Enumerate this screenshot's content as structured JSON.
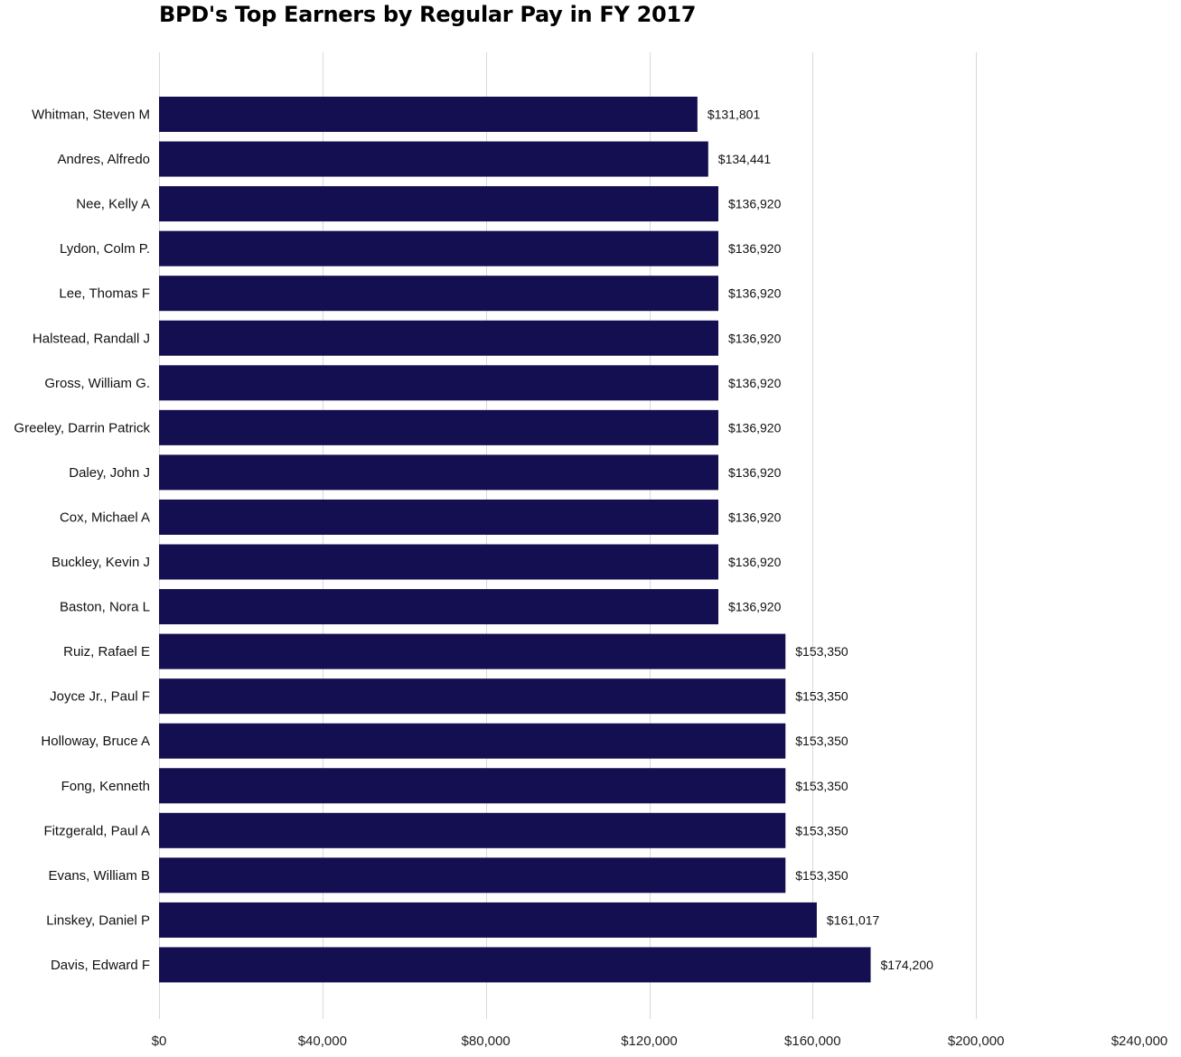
{
  "chart_data": {
    "type": "bar",
    "orientation": "horizontal",
    "title": "BPD's Top Earners by Regular Pay in FY 2017",
    "xlabel": "",
    "ylabel": "",
    "xlim": [
      0,
      240000
    ],
    "x_ticks": [
      0,
      40000,
      80000,
      120000,
      160000,
      200000,
      240000
    ],
    "x_tick_labels": [
      "$0",
      "$40,000",
      "$80,000",
      "$120,000",
      "$160,000",
      "$200,000",
      "$240,000"
    ],
    "grid": "vertical",
    "legend": "none",
    "bar_color": "#130f50",
    "categories": [
      "Whitman, Steven M",
      "Andres, Alfredo",
      "Nee, Kelly A",
      "Lydon, Colm P.",
      "Lee, Thomas F",
      "Halstead, Randall J",
      "Gross, William G.",
      "Greeley, Darrin Patrick",
      "Daley, John J",
      "Cox, Michael A",
      "Buckley, Kevin J",
      "Baston, Nora L",
      "Ruiz, Rafael E",
      "Joyce Jr., Paul F",
      "Holloway, Bruce A",
      "Fong, Kenneth",
      "Fitzgerald, Paul A",
      "Evans, William B",
      "Linskey, Daniel P",
      "Davis, Edward F"
    ],
    "values": [
      131801,
      134441,
      136920,
      136920,
      136920,
      136920,
      136920,
      136920,
      136920,
      136920,
      136920,
      136920,
      153350,
      153350,
      153350,
      153350,
      153350,
      153350,
      161017,
      174200
    ],
    "value_labels": [
      "$131,801",
      "$134,441",
      "$136,920",
      "$136,920",
      "$136,920",
      "$136,920",
      "$136,920",
      "$136,920",
      "$136,920",
      "$136,920",
      "$136,920",
      "$136,920",
      "$153,350",
      "$153,350",
      "$153,350",
      "$153,350",
      "$153,350",
      "$153,350",
      "$161,017",
      "$174,200"
    ]
  }
}
